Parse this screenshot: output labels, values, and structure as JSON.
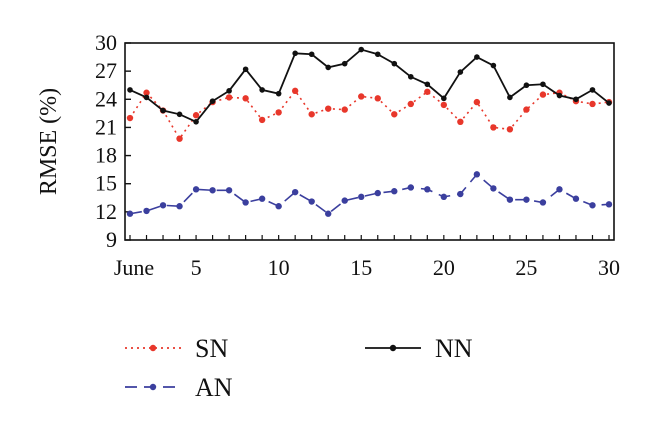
{
  "chart_data": {
    "type": "line",
    "title": "",
    "xlabel": "",
    "ylabel": "RMSE (%)",
    "xlim": [
      1,
      30
    ],
    "ylim": [
      9,
      30
    ],
    "x_ticks": [
      1,
      5,
      10,
      15,
      20,
      25,
      30
    ],
    "x_tick_labels": [
      "June",
      "5",
      "10",
      "15",
      "20",
      "25",
      "30"
    ],
    "y_ticks": [
      9,
      12,
      15,
      18,
      21,
      24,
      27,
      30
    ],
    "y_tick_labels": [
      "9",
      "12",
      "15",
      "18",
      "21",
      "24",
      "27",
      "30"
    ],
    "grid": false,
    "legend_position": "bottom",
    "x": [
      1,
      2,
      3,
      4,
      5,
      6,
      7,
      8,
      9,
      10,
      11,
      12,
      13,
      14,
      15,
      16,
      17,
      18,
      19,
      20,
      21,
      22,
      23,
      24,
      25,
      26,
      27,
      28,
      29,
      30
    ],
    "series": [
      {
        "name": "SN",
        "color": "#e8372b",
        "line_style": "dotted",
        "values": [
          22.0,
          24.7,
          22.8,
          19.8,
          22.3,
          23.7,
          24.2,
          24.1,
          21.8,
          22.6,
          24.9,
          22.4,
          23.0,
          22.9,
          24.3,
          24.1,
          22.4,
          23.5,
          24.8,
          23.4,
          21.6,
          23.7,
          21.0,
          20.8,
          22.9,
          24.5,
          24.7,
          23.8,
          23.5,
          23.7
        ]
      },
      {
        "name": "AN",
        "color": "#3b3f9e",
        "line_style": "dashed",
        "values": [
          11.8,
          12.1,
          12.7,
          12.6,
          14.4,
          14.3,
          14.3,
          13.0,
          13.4,
          12.6,
          14.1,
          13.1,
          11.8,
          13.2,
          13.6,
          14.0,
          14.2,
          14.6,
          14.4,
          13.6,
          13.9,
          16.0,
          14.5,
          13.3,
          13.3,
          13.0,
          14.4,
          13.4,
          12.7,
          12.8
        ]
      },
      {
        "name": "NN",
        "color": "#111111",
        "line_style": "solid",
        "values": [
          25.0,
          24.2,
          22.8,
          22.4,
          21.6,
          23.8,
          24.9,
          27.2,
          25.0,
          24.6,
          28.9,
          28.8,
          27.4,
          27.8,
          29.3,
          28.8,
          27.8,
          26.4,
          25.6,
          24.1,
          26.9,
          28.5,
          27.6,
          24.2,
          25.5,
          25.6,
          24.4,
          24.0,
          25.0,
          23.6
        ]
      }
    ]
  }
}
